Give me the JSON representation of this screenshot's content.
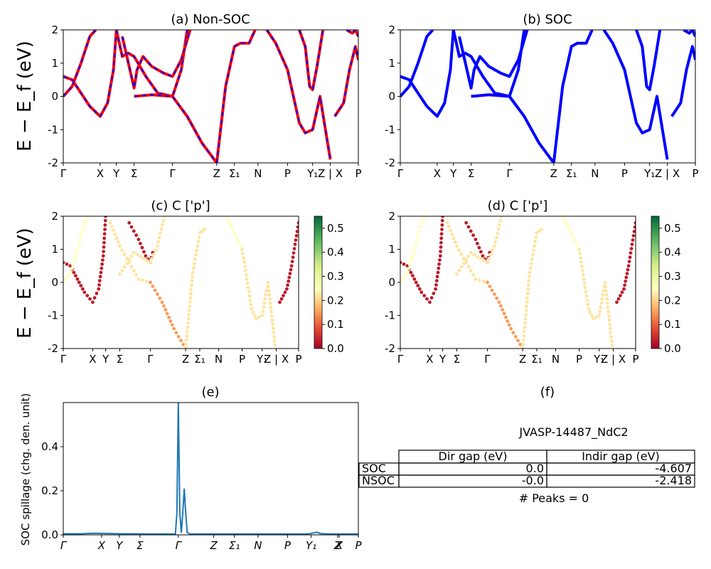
{
  "kpath_ticks": [
    "Γ",
    "X",
    "Y",
    "Σ",
    "Γ",
    "Z",
    "Σ₁",
    "N",
    "P",
    "Y₁",
    "Z | X",
    "P"
  ],
  "kpath_ticks_e": [
    "Γ",
    "X",
    "Y",
    "Σ",
    "Γ",
    "Z",
    "Σ₁",
    "N",
    "P",
    "Y₁",
    "Z",
    "X",
    "P"
  ],
  "band_ylabel": "E − E_f (eV)",
  "chart_data": [
    {
      "id": "a",
      "type": "line",
      "title": "(a) Non-SOC",
      "ylabel": "E − E_f (eV)",
      "ylim": [
        -2,
        2
      ],
      "yticks": [
        -2,
        -1,
        0,
        1,
        2
      ],
      "xtick_positions": [
        0.0,
        0.125,
        0.18,
        0.24,
        0.37,
        0.52,
        0.58,
        0.66,
        0.76,
        0.845,
        0.905,
        1.0
      ],
      "colors": {
        "outer": "#ff0000",
        "inner": "#0000ff"
      },
      "series": [
        {
          "x": [
            0.0,
            0.03,
            0.06,
            0.09,
            0.125,
            0.15,
            0.17,
            0.18
          ],
          "y": [
            0.6,
            0.5,
            0.1,
            -0.3,
            -0.6,
            -0.2,
            0.8,
            2.0
          ]
        },
        {
          "x": [
            0.0,
            0.03,
            0.06,
            0.09,
            0.11
          ],
          "y": [
            0.0,
            0.3,
            1.0,
            1.8,
            2.0
          ]
        },
        {
          "x": [
            0.18,
            0.2,
            0.22,
            0.24,
            0.28,
            0.32,
            0.37,
            0.4,
            0.42
          ],
          "y": [
            2.0,
            1.2,
            1.3,
            1.2,
            0.6,
            0.1,
            0.0,
            0.8,
            2.0
          ]
        },
        {
          "x": [
            0.2,
            0.24,
            0.25,
            0.27,
            0.3,
            0.34,
            0.37,
            0.4,
            0.43
          ],
          "y": [
            1.8,
            0.25,
            0.8,
            1.2,
            0.9,
            0.7,
            0.6,
            1.1,
            2.0
          ]
        },
        {
          "x": [
            0.24,
            0.3,
            0.37,
            0.42,
            0.47,
            0.52
          ],
          "y": [
            0.0,
            0.05,
            0.0,
            -0.6,
            -1.4,
            -2.0
          ]
        },
        {
          "x": [
            0.52,
            0.55,
            0.58,
            0.6,
            0.63,
            0.65
          ],
          "y": [
            -2.0,
            0.3,
            1.5,
            1.6,
            1.6,
            2.0
          ]
        },
        {
          "x": [
            0.69,
            0.72,
            0.76,
            0.8,
            0.82,
            0.845,
            0.87,
            0.905
          ],
          "y": [
            2.0,
            1.6,
            0.8,
            -0.8,
            -1.1,
            -1.0,
            0.0,
            -1.9
          ]
        },
        {
          "x": [
            0.8,
            0.82,
            0.835,
            0.845,
            0.86,
            0.88
          ],
          "y": [
            2.0,
            1.5,
            0.3,
            0.2,
            0.9,
            2.0
          ]
        },
        {
          "x": [
            0.92,
            0.95,
            0.97,
            0.99,
            1.0
          ],
          "y": [
            -0.6,
            -0.2,
            0.8,
            1.5,
            1.1
          ]
        },
        {
          "x": [
            0.96,
            0.98,
            0.99,
            1.0
          ],
          "y": [
            2.0,
            1.9,
            2.0,
            1.8
          ]
        }
      ]
    },
    {
      "id": "b",
      "type": "line",
      "title": "(b) SOC",
      "ylim": [
        -2,
        2
      ],
      "yticks": [
        -2,
        -1,
        0,
        1,
        2
      ],
      "xtick_positions": [
        0.0,
        0.125,
        0.18,
        0.24,
        0.37,
        0.52,
        0.58,
        0.66,
        0.76,
        0.845,
        0.905,
        1.0
      ],
      "colors": {
        "line": "#0000ff"
      },
      "series": [
        {
          "x": [
            0.0,
            0.03,
            0.06,
            0.09,
            0.125,
            0.15,
            0.17,
            0.18
          ],
          "y": [
            0.6,
            0.5,
            0.1,
            -0.3,
            -0.6,
            -0.2,
            0.8,
            2.0
          ]
        },
        {
          "x": [
            0.0,
            0.03,
            0.06,
            0.09,
            0.11
          ],
          "y": [
            0.0,
            0.3,
            1.0,
            1.8,
            2.0
          ]
        },
        {
          "x": [
            0.18,
            0.2,
            0.22,
            0.24,
            0.28,
            0.32,
            0.37,
            0.4,
            0.42
          ],
          "y": [
            2.0,
            1.2,
            1.3,
            1.2,
            0.6,
            0.1,
            0.0,
            0.8,
            2.0
          ]
        },
        {
          "x": [
            0.2,
            0.24,
            0.25,
            0.27,
            0.3,
            0.34,
            0.37,
            0.4,
            0.43
          ],
          "y": [
            1.8,
            0.25,
            0.8,
            1.2,
            0.9,
            0.7,
            0.6,
            1.1,
            2.0
          ]
        },
        {
          "x": [
            0.24,
            0.3,
            0.37,
            0.42,
            0.47,
            0.52
          ],
          "y": [
            0.0,
            0.05,
            0.0,
            -0.6,
            -1.4,
            -2.0
          ]
        },
        {
          "x": [
            0.52,
            0.55,
            0.58,
            0.6,
            0.63,
            0.65
          ],
          "y": [
            -2.0,
            0.3,
            1.5,
            1.6,
            1.6,
            2.0
          ]
        },
        {
          "x": [
            0.69,
            0.72,
            0.76,
            0.8,
            0.82,
            0.845,
            0.87,
            0.905
          ],
          "y": [
            2.0,
            1.6,
            0.8,
            -0.8,
            -1.1,
            -1.0,
            0.0,
            -1.9
          ]
        },
        {
          "x": [
            0.8,
            0.82,
            0.835,
            0.845,
            0.86,
            0.88
          ],
          "y": [
            2.0,
            1.5,
            0.3,
            0.2,
            0.9,
            2.0
          ]
        },
        {
          "x": [
            0.92,
            0.95,
            0.97,
            0.99,
            1.0
          ],
          "y": [
            -0.6,
            -0.2,
            0.8,
            1.5,
            1.1
          ]
        },
        {
          "x": [
            0.96,
            0.98,
            0.99,
            1.0
          ],
          "y": [
            2.0,
            1.9,
            2.0,
            1.8
          ]
        }
      ]
    },
    {
      "id": "c",
      "type": "scatter",
      "title": "(c)  C ['p']",
      "ylabel": "E − E_f (eV)",
      "ylim": [
        -2,
        2
      ],
      "yticks": [
        -2,
        -1,
        0,
        1,
        2
      ],
      "colorbar": {
        "min": 0.0,
        "max": 0.55,
        "ticks": [
          "0.0",
          "0.1",
          "0.2",
          "0.3",
          "0.4",
          "0.5"
        ],
        "colormap": "RdYlGn"
      },
      "xtick_positions": [
        0.0,
        0.125,
        0.18,
        0.24,
        0.37,
        0.52,
        0.58,
        0.66,
        0.76,
        0.845,
        0.905,
        1.0
      ],
      "series": [
        {
          "weight": 0.03,
          "x": [
            0.0,
            0.03,
            0.06,
            0.09,
            0.125,
            0.15,
            0.17,
            0.18
          ],
          "y": [
            0.6,
            0.5,
            0.1,
            -0.3,
            -0.6,
            -0.2,
            0.8,
            2.0
          ]
        },
        {
          "weight": 0.25,
          "x": [
            0.0,
            0.03,
            0.06,
            0.09,
            0.11
          ],
          "y": [
            0.0,
            0.3,
            1.0,
            1.8,
            2.0
          ]
        },
        {
          "weight": 0.03,
          "x": [
            0.28,
            0.32,
            0.35,
            0.37,
            0.38
          ],
          "y": [
            1.8,
            1.3,
            0.8,
            0.6,
            0.9
          ]
        },
        {
          "weight": 0.22,
          "x": [
            0.2,
            0.24,
            0.28,
            0.32,
            0.37
          ],
          "y": [
            1.8,
            1.1,
            0.6,
            0.1,
            0.0
          ]
        },
        {
          "weight": 0.22,
          "x": [
            0.24,
            0.3,
            0.37,
            0.4,
            0.43
          ],
          "y": [
            0.25,
            0.9,
            0.6,
            1.1,
            2.0
          ]
        },
        {
          "weight": 0.15,
          "x": [
            0.37,
            0.42,
            0.47,
            0.52
          ],
          "y": [
            0.0,
            -0.6,
            -1.4,
            -2.0
          ]
        },
        {
          "weight": 0.22,
          "x": [
            0.52,
            0.55,
            0.58,
            0.6
          ],
          "y": [
            -2.0,
            0.3,
            1.5,
            1.6
          ]
        },
        {
          "weight": 0.25,
          "x": [
            0.69,
            0.72,
            0.76
          ],
          "y": [
            2.0,
            1.6,
            1.0
          ]
        },
        {
          "weight": 0.22,
          "x": [
            0.76,
            0.8,
            0.82,
            0.845,
            0.87,
            0.9
          ],
          "y": [
            1.0,
            -0.8,
            -1.1,
            -1.0,
            0.0,
            -1.9
          ]
        },
        {
          "weight": 0.03,
          "x": [
            0.92,
            0.95,
            0.97,
            1.0
          ],
          "y": [
            -0.6,
            -0.2,
            0.5,
            1.8
          ]
        }
      ]
    },
    {
      "id": "d",
      "type": "scatter",
      "title": "(d) C ['p']",
      "ylim": [
        -2,
        2
      ],
      "yticks": [
        -2,
        -1,
        0,
        1,
        2
      ],
      "colorbar": {
        "min": 0.0,
        "max": 0.55,
        "ticks": [
          "0.0",
          "0.1",
          "0.2",
          "0.3",
          "0.4",
          "0.5"
        ],
        "colormap": "RdYlGn"
      },
      "xtick_positions": [
        0.0,
        0.125,
        0.18,
        0.24,
        0.37,
        0.52,
        0.58,
        0.66,
        0.76,
        0.845,
        0.905,
        1.0
      ],
      "series": [
        {
          "weight": 0.03,
          "x": [
            0.0,
            0.03,
            0.06,
            0.09,
            0.125,
            0.15,
            0.17,
            0.18
          ],
          "y": [
            0.6,
            0.5,
            0.1,
            -0.3,
            -0.6,
            -0.2,
            0.8,
            2.0
          ]
        },
        {
          "weight": 0.25,
          "x": [
            0.0,
            0.03,
            0.06,
            0.09,
            0.11
          ],
          "y": [
            0.0,
            0.3,
            1.0,
            1.8,
            2.0
          ]
        },
        {
          "weight": 0.03,
          "x": [
            0.28,
            0.32,
            0.35,
            0.37,
            0.38
          ],
          "y": [
            1.8,
            1.3,
            0.8,
            0.6,
            0.9
          ]
        },
        {
          "weight": 0.22,
          "x": [
            0.2,
            0.24,
            0.28,
            0.32,
            0.37
          ],
          "y": [
            1.8,
            1.1,
            0.6,
            0.1,
            0.0
          ]
        },
        {
          "weight": 0.22,
          "x": [
            0.24,
            0.3,
            0.37,
            0.4,
            0.43
          ],
          "y": [
            0.25,
            0.9,
            0.6,
            1.1,
            2.0
          ]
        },
        {
          "weight": 0.15,
          "x": [
            0.37,
            0.42,
            0.47,
            0.52
          ],
          "y": [
            0.0,
            -0.6,
            -1.4,
            -2.0
          ]
        },
        {
          "weight": 0.22,
          "x": [
            0.52,
            0.55,
            0.58,
            0.6
          ],
          "y": [
            -2.0,
            0.3,
            1.5,
            1.6
          ]
        },
        {
          "weight": 0.25,
          "x": [
            0.69,
            0.72,
            0.76
          ],
          "y": [
            2.0,
            1.6,
            1.0
          ]
        },
        {
          "weight": 0.22,
          "x": [
            0.76,
            0.8,
            0.82,
            0.845,
            0.87,
            0.9
          ],
          "y": [
            1.0,
            -0.8,
            -1.1,
            -1.0,
            0.0,
            -1.9
          ]
        },
        {
          "weight": 0.03,
          "x": [
            0.92,
            0.95,
            0.97,
            1.0
          ],
          "y": [
            -0.6,
            -0.2,
            0.5,
            1.8
          ]
        }
      ]
    },
    {
      "id": "e",
      "type": "line",
      "title": "(e)",
      "ylabel": "SOC spillage (chg. den. unit)",
      "ylim": [
        0,
        0.6
      ],
      "yticks": [
        "0.0",
        "0.2",
        "0.4"
      ],
      "xtick_positions": [
        0.0,
        0.13,
        0.19,
        0.26,
        0.39,
        0.51,
        0.58,
        0.66,
        0.76,
        0.84,
        0.93,
        0.935,
        1.0
      ],
      "color": "#1f77b4",
      "x": [
        0.0,
        0.06,
        0.1,
        0.2,
        0.3,
        0.38,
        0.385,
        0.39,
        0.395,
        0.4,
        0.405,
        0.41,
        0.415,
        0.42,
        0.43,
        0.6,
        0.83,
        0.86,
        0.87,
        0.9,
        1.0
      ],
      "y": [
        0.005,
        0.005,
        0.007,
        0.005,
        0.004,
        0.004,
        0.1,
        0.6,
        0.1,
        0.01,
        0.1,
        0.21,
        0.1,
        0.01,
        0.004,
        0.004,
        0.004,
        0.012,
        0.006,
        0.004,
        0.004
      ]
    }
  ],
  "panel_f": {
    "title": "(f)",
    "material": "JVASP-14487_NdC2",
    "col_headers": [
      "Dir gap (eV)",
      "Indir gap (eV)"
    ],
    "rows": [
      {
        "label": "SOC",
        "dir": "0.0",
        "indir": "-4.607"
      },
      {
        "label": "NSOC",
        "dir": "-0.0",
        "indir": "-2.418"
      }
    ],
    "peaks": "# Peaks = 0"
  }
}
